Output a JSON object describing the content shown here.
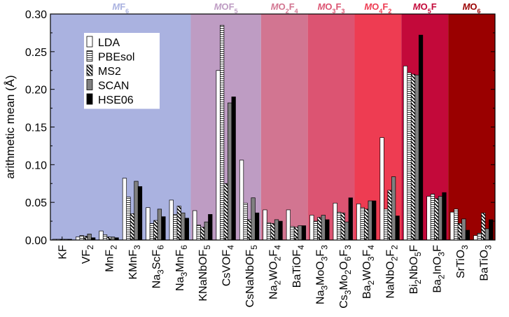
{
  "chart_data": {
    "type": "bar",
    "ylabel": "arithmetic mean (Å)",
    "ylim": [
      0,
      0.3
    ],
    "yticks": [
      "0.00",
      "0.05",
      "0.10",
      "0.15",
      "0.20",
      "0.25",
      "0.30"
    ],
    "legend_position": "top-left",
    "categories": [
      {
        "label": "KF",
        "parts": [
          [
            "KF",
            ""
          ]
        ]
      },
      {
        "label": "VF2",
        "parts": [
          [
            "VF",
            ""
          ],
          [
            "2",
            "sub"
          ]
        ]
      },
      {
        "label": "MnF2",
        "parts": [
          [
            "MnF",
            ""
          ],
          [
            "2",
            "sub"
          ]
        ]
      },
      {
        "label": "KMnF3",
        "parts": [
          [
            "KMnF",
            ""
          ],
          [
            "3",
            "sub"
          ]
        ]
      },
      {
        "label": "Na3ScF6",
        "parts": [
          [
            "Na",
            ""
          ],
          [
            "3",
            "sub"
          ],
          [
            "ScF",
            ""
          ],
          [
            "6",
            "sub"
          ]
        ]
      },
      {
        "label": "Na3MnF6",
        "parts": [
          [
            "Na",
            ""
          ],
          [
            "3",
            "sub"
          ],
          [
            "MnF",
            ""
          ],
          [
            "6",
            "sub"
          ]
        ]
      },
      {
        "label": "KNaNbOF5",
        "parts": [
          [
            "KNaNbOF",
            ""
          ],
          [
            "5",
            "sub"
          ]
        ]
      },
      {
        "label": "CsVOF4",
        "parts": [
          [
            "CsVOF",
            ""
          ],
          [
            "4",
            "sub"
          ]
        ]
      },
      {
        "label": "CsNaNbOF5",
        "parts": [
          [
            "CsNaNbOF",
            ""
          ],
          [
            "5",
            "sub"
          ]
        ]
      },
      {
        "label": "Na2WO2F4",
        "parts": [
          [
            "Na",
            ""
          ],
          [
            "2",
            "sub"
          ],
          [
            "WO",
            ""
          ],
          [
            "2",
            "sub"
          ],
          [
            "F",
            ""
          ],
          [
            "4",
            "sub"
          ]
        ]
      },
      {
        "label": "BaTiOF4",
        "parts": [
          [
            "BaTiOF",
            ""
          ],
          [
            "4",
            "sub"
          ]
        ]
      },
      {
        "label": "Na3MoO3F3",
        "parts": [
          [
            "Na",
            ""
          ],
          [
            "3",
            "sub"
          ],
          [
            "MoO",
            ""
          ],
          [
            "3",
            "sub"
          ],
          [
            "F",
            ""
          ],
          [
            "3",
            "sub"
          ]
        ]
      },
      {
        "label": "Cs3Mo2O6F3",
        "parts": [
          [
            "Cs",
            ""
          ],
          [
            "3",
            "sub"
          ],
          [
            "Mo",
            ""
          ],
          [
            "2",
            "sub"
          ],
          [
            "O",
            ""
          ],
          [
            "6",
            "sub"
          ],
          [
            "F",
            ""
          ],
          [
            "3",
            "sub"
          ]
        ]
      },
      {
        "label": "Ba2WO3F4",
        "parts": [
          [
            "Ba",
            ""
          ],
          [
            "2",
            "sub"
          ],
          [
            "WO",
            ""
          ],
          [
            "3",
            "sub"
          ],
          [
            "F",
            ""
          ],
          [
            "4",
            "sub"
          ]
        ]
      },
      {
        "label": "NaNbO2F2",
        "parts": [
          [
            "NaNbO",
            ""
          ],
          [
            "2",
            "sub"
          ],
          [
            "F",
            ""
          ],
          [
            "2",
            "sub"
          ]
        ]
      },
      {
        "label": "Bi2NbO5F",
        "parts": [
          [
            "Bi",
            ""
          ],
          [
            "2",
            "sub"
          ],
          [
            "NbO",
            ""
          ],
          [
            "5",
            "sub"
          ],
          [
            "F",
            ""
          ]
        ]
      },
      {
        "label": "Ba2InO3F",
        "parts": [
          [
            "Ba",
            ""
          ],
          [
            "2",
            "sub"
          ],
          [
            "InO",
            ""
          ],
          [
            "3",
            "sub"
          ],
          [
            "F",
            ""
          ]
        ]
      },
      {
        "label": "SrTiO3",
        "parts": [
          [
            "SrTiO",
            ""
          ],
          [
            "3",
            "sub"
          ]
        ]
      },
      {
        "label": "BaTiO3",
        "parts": [
          [
            "BaTiO",
            ""
          ],
          [
            "3",
            "sub"
          ]
        ]
      }
    ],
    "series": [
      {
        "name": "LDA",
        "pattern": "white",
        "values": [
          0.001,
          0.004,
          0.012,
          0.082,
          0.043,
          0.053,
          0.039,
          0.225,
          0.106,
          0.04,
          0.04,
          0.033,
          0.049,
          0.048,
          0.136,
          0.231,
          0.058,
          0.037,
          0.006
        ]
      },
      {
        "name": "PBEsol",
        "pattern": "hlines",
        "values": [
          0.001,
          0.006,
          0.007,
          0.057,
          0.022,
          0.034,
          0.02,
          0.285,
          0.049,
          0.023,
          0.018,
          0.025,
          0.037,
          0.043,
          0.041,
          0.222,
          0.061,
          0.041,
          0.009
        ]
      },
      {
        "name": "MS2",
        "pattern": "diag",
        "values": [
          0.001,
          0.005,
          0.004,
          0.035,
          0.026,
          0.045,
          0.017,
          0.075,
          0.027,
          0.022,
          0.017,
          0.03,
          0.036,
          0.041,
          0.066,
          0.22,
          0.055,
          0.022,
          0.036
        ]
      },
      {
        "name": "SCAN",
        "pattern": "gray",
        "values": [
          0.001,
          0.008,
          0.004,
          0.078,
          0.041,
          0.036,
          0.024,
          0.182,
          0.056,
          0.027,
          0.019,
          0.033,
          0.024,
          0.052,
          0.084,
          0.219,
          0.058,
          0.028,
          0.015
        ]
      },
      {
        "name": "HSE06",
        "pattern": "black",
        "values": [
          0.001,
          0.003,
          0.003,
          0.071,
          0.031,
          0.029,
          0.034,
          0.19,
          0.036,
          0.025,
          0.019,
          0.027,
          0.056,
          0.052,
          0.032,
          0.272,
          0.063,
          0.013,
          0.027
        ]
      }
    ],
    "regions": [
      {
        "parts": [
          [
            "M",
            "i"
          ],
          [
            "F",
            ""
          ],
          [
            "6",
            "sub"
          ]
        ],
        "color": "#aab2e0",
        "label_color": "#aab2e0",
        "start": 0,
        "count": 6
      },
      {
        "parts": [
          [
            "M",
            "i"
          ],
          [
            "OF",
            ""
          ],
          [
            "5",
            "sub"
          ]
        ],
        "color": "#be9cc3",
        "label_color": "#be9cc3",
        "start": 6,
        "count": 3
      },
      {
        "parts": [
          [
            "M",
            "i"
          ],
          [
            "O",
            ""
          ],
          [
            "2",
            "sub"
          ],
          [
            "F",
            ""
          ],
          [
            "4",
            "sub"
          ]
        ],
        "color": "#d27591",
        "label_color": "#d27591",
        "start": 9,
        "count": 2
      },
      {
        "parts": [
          [
            "M",
            "i"
          ],
          [
            "O",
            ""
          ],
          [
            "3",
            "sub"
          ],
          [
            "F",
            ""
          ],
          [
            "3",
            "sub"
          ]
        ],
        "color": "#dc5472",
        "label_color": "#dc5472",
        "start": 11,
        "count": 2
      },
      {
        "parts": [
          [
            "M",
            "i"
          ],
          [
            "O",
            ""
          ],
          [
            "4",
            "sub"
          ],
          [
            "F",
            ""
          ],
          [
            "2",
            "sub"
          ]
        ],
        "color": "#ee3c52",
        "label_color": "#ee3c52",
        "start": 13,
        "count": 2
      },
      {
        "parts": [
          [
            "M",
            "i"
          ],
          [
            "O",
            ""
          ],
          [
            "5",
            "sub"
          ],
          [
            "F",
            ""
          ]
        ],
        "color": "#c3093a",
        "label_color": "#c3093a",
        "start": 15,
        "count": 2
      },
      {
        "parts": [
          [
            "M",
            "i"
          ],
          [
            "O",
            ""
          ],
          [
            "6",
            "sub"
          ]
        ],
        "color": "#9a0000",
        "label_color": "#9a0000",
        "start": 17,
        "count": 2
      }
    ],
    "grid": false
  }
}
